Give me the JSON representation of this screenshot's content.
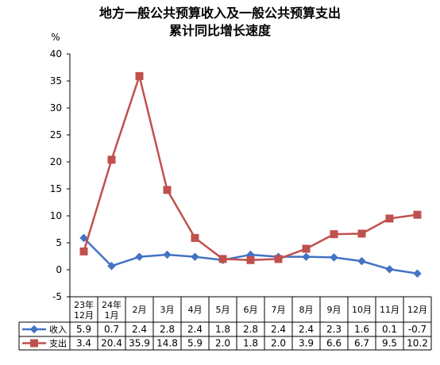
{
  "chart_data": {
    "type": "line",
    "title": [
      "地方一般公共预算收入及一般公共预算支出",
      "累计同比增长速度"
    ],
    "ylabel": "%",
    "ylim": [
      -5,
      40
    ],
    "yticks": [
      -5,
      0,
      5,
      10,
      15,
      20,
      25,
      30,
      35,
      40
    ],
    "categories": [
      [
        "23年",
        "12月"
      ],
      [
        "24年",
        "1月"
      ],
      [
        "2月"
      ],
      [
        "3月"
      ],
      [
        "4月"
      ],
      [
        "5月"
      ],
      [
        "6月"
      ],
      [
        "7月"
      ],
      [
        "8月"
      ],
      [
        "9月"
      ],
      [
        "10月"
      ],
      [
        "11月"
      ],
      [
        "12月"
      ]
    ],
    "series": [
      {
        "name": "收入",
        "color": "#4472C4",
        "marker": "diamond",
        "values": [
          5.9,
          0.7,
          2.4,
          2.8,
          2.4,
          1.8,
          2.8,
          2.4,
          2.4,
          2.3,
          1.6,
          0.1,
          -0.7
        ]
      },
      {
        "name": "支出",
        "color": "#C0504D",
        "marker": "square",
        "values": [
          3.4,
          20.4,
          35.9,
          14.8,
          5.9,
          2.0,
          1.8,
          2.0,
          3.9,
          6.6,
          6.7,
          9.5,
          10.2
        ]
      }
    ],
    "data_table": true,
    "legend": "in data table"
  }
}
